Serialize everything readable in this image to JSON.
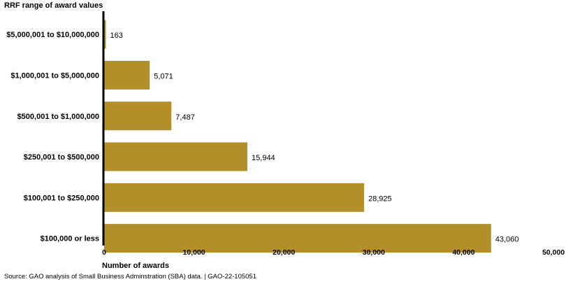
{
  "chart_data": {
    "type": "bar",
    "orientation": "horizontal",
    "title": "",
    "ylabel": "RRF range of award values",
    "xlabel": "Number of awards",
    "categories": [
      "$5,000,001 to $10,000,000",
      "$1,000,001 to $5,000,000",
      "$500,001 to $1,000,000",
      "$250,001 to $500,000",
      "$100,001 to $250,000",
      "$100,000 or less"
    ],
    "values": [
      163,
      5071,
      7487,
      15944,
      28925,
      43060
    ],
    "value_labels": [
      "163",
      "5,071",
      "7,487",
      "15,944",
      "28,925",
      "43,060"
    ],
    "xlim": [
      0,
      50000
    ],
    "xticks": [
      0,
      10000,
      20000,
      30000,
      40000,
      50000
    ],
    "xtick_labels": [
      "0",
      "10,000",
      "20,000",
      "30,000",
      "40,000",
      "50,000"
    ],
    "bar_color": "#B38F2A",
    "axis_color": "#000000",
    "grid": false,
    "legend": "none"
  },
  "footer": {
    "source": "Source: GAO analysis of Small Business Adminstration (SBA) data.  |  GAO-22-105051"
  }
}
